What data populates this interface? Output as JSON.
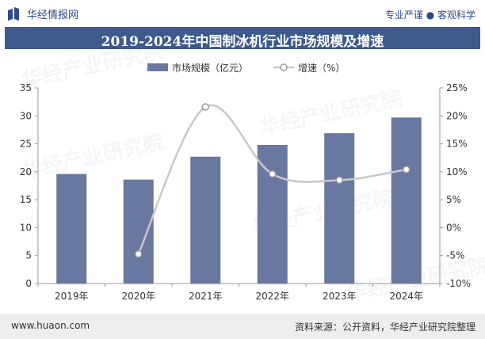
{
  "header": {
    "brand": "华经情报网",
    "tagline": "专业严谨 ● 客观科学"
  },
  "title": "2019-2024年中国制冰机行业市场规模及增速",
  "watermark": "华经产业研究院",
  "footer": {
    "url": "www.huaon.com",
    "source": "资料来源：公开资料，华经产业研究院整理"
  },
  "colors": {
    "bar": "#6878a0",
    "line": "#c8c8c8",
    "title_bg": "#3e5a8c",
    "brand": "#2e4a8a"
  },
  "chart_data": {
    "type": "bar",
    "categories": [
      "2019年",
      "2020年",
      "2021年",
      "2022年",
      "2023年",
      "2024年"
    ],
    "series": [
      {
        "name": "市场规模（亿元）",
        "type": "bar",
        "axis": "left",
        "values": [
          19.6,
          18.6,
          22.7,
          24.8,
          26.9,
          29.7
        ]
      },
      {
        "name": "增速（%）",
        "type": "line",
        "axis": "right",
        "values": [
          null,
          -4.7,
          21.6,
          9.6,
          8.5,
          10.4
        ]
      }
    ],
    "y_left": {
      "min": 0,
      "max": 35,
      "ticks": [
        "0",
        "5",
        "10",
        "15",
        "20",
        "25",
        "30",
        "35"
      ]
    },
    "y_right": {
      "min": -10,
      "max": 25,
      "ticks": [
        "-10%",
        "-5%",
        "0%",
        "5%",
        "10%",
        "15%",
        "20%",
        "25%"
      ]
    },
    "legend_position": "top-center",
    "grid": false
  }
}
